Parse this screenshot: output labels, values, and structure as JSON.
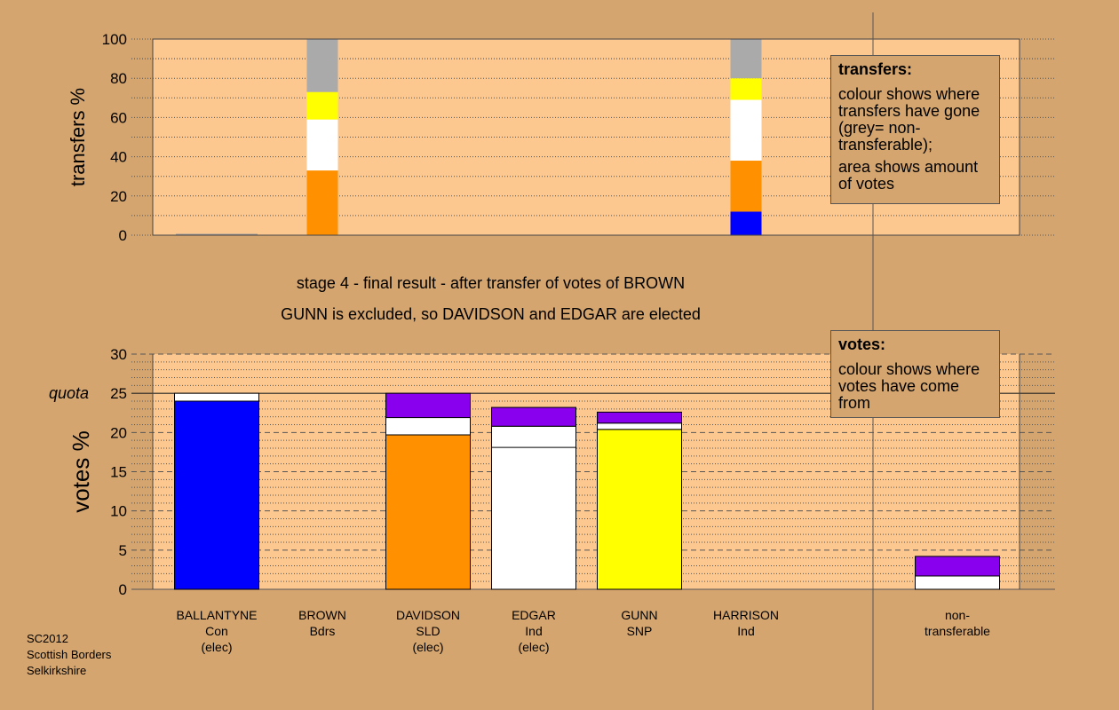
{
  "colors": {
    "background": "#d4a56f",
    "plot_bg": "#fdc890",
    "Con": "#0000ff",
    "SLD": "#ff9000",
    "Ind": "#ffffff",
    "SNP": "#ffff00",
    "Bdrs": "#8800ee",
    "non_transferable": "#aaaaaa"
  },
  "stage_title": "stage 4 - final result - after transfer of votes of BROWN",
  "stage_subtitle": "GUNN is excluded, so DAVIDSON and EDGAR are elected",
  "transfers_legend": {
    "heading": "transfers:",
    "text1": "colour shows where transfers have gone (grey= non-transferable);",
    "text2": "area shows amount of votes"
  },
  "votes_legend": {
    "heading": "votes:",
    "text1": "colour shows where votes have come from"
  },
  "footer": {
    "line1": "SC2012",
    "line2": "Scottish Borders",
    "line3": "Selkirkshire"
  },
  "candidates": [
    {
      "name": "BALLANTYNE",
      "party": "Con",
      "status": "(elec)"
    },
    {
      "name": "BROWN",
      "party": "Bdrs",
      "status": ""
    },
    {
      "name": "DAVIDSON",
      "party": "SLD",
      "status": "(elec)"
    },
    {
      "name": "EDGAR",
      "party": "Ind",
      "status": "(elec)"
    },
    {
      "name": "GUNN",
      "party": "SNP",
      "status": ""
    },
    {
      "name": "HARRISON",
      "party": "Ind",
      "status": ""
    }
  ],
  "nontransferable_label": {
    "line1": "non-",
    "line2": "transferable"
  },
  "chart_data": [
    {
      "type": "bar",
      "stacked": true,
      "ylabel": "transfers %",
      "ylim": [
        0,
        100
      ],
      "yticks": [
        0,
        20,
        40,
        60,
        80,
        100
      ],
      "grid": "dotted",
      "columns": [
        {
          "position": "BALLANTYNE",
          "segments": []
        },
        {
          "position": "BROWN",
          "segments": [
            {
              "color": "SLD",
              "from": 0,
              "to": 33
            },
            {
              "color": "Ind",
              "from": 33,
              "to": 59
            },
            {
              "color": "SNP",
              "from": 59,
              "to": 73
            },
            {
              "color": "non_transferable",
              "from": 73,
              "to": 100
            }
          ]
        },
        {
          "position": "DAVIDSON",
          "segments": []
        },
        {
          "position": "EDGAR",
          "segments": []
        },
        {
          "position": "GUNN",
          "segments": []
        },
        {
          "position": "HARRISON",
          "segments": []
        },
        {
          "position": "GUNN",
          "offset": "right",
          "segments": []
        },
        {
          "position": "between HARRISON and non-transferable",
          "segments": [
            {
              "color": "Con",
              "from": 0,
              "to": 12
            },
            {
              "color": "SLD",
              "from": 12,
              "to": 38
            },
            {
              "color": "Ind",
              "from": 38,
              "to": 69
            },
            {
              "color": "SNP",
              "from": 69,
              "to": 80
            },
            {
              "color": "non_transferable",
              "from": 80,
              "to": 100
            }
          ]
        }
      ]
    },
    {
      "type": "bar",
      "stacked": true,
      "ylabel": "votes %",
      "ylim": [
        0,
        30
      ],
      "yticks": [
        0,
        5,
        10,
        15,
        20,
        25,
        30
      ],
      "quota": 25,
      "quota_label": "quota",
      "grid": "dotted",
      "categories": [
        "BALLANTYNE",
        "BROWN",
        "DAVIDSON",
        "EDGAR",
        "GUNN",
        "HARRISON",
        "non-transferable"
      ],
      "series": [
        {
          "color": "Con",
          "values": [
            24.0,
            0,
            0,
            0,
            0,
            0,
            0
          ]
        },
        {
          "color": "SLD",
          "values": [
            0,
            0,
            19.7,
            0,
            0,
            0,
            0
          ]
        },
        {
          "color": "SNP",
          "values": [
            0,
            0,
            0,
            0,
            20.4,
            0,
            0
          ]
        },
        {
          "color": "Ind",
          "values": [
            1.0,
            0,
            2.2,
            20.8,
            0.8,
            0,
            1.7
          ]
        },
        {
          "color": "Bdrs",
          "values": [
            0,
            0,
            3.1,
            2.4,
            1.4,
            0,
            2.5
          ]
        }
      ],
      "ind_split": {
        "EDGAR": [
          18.1,
          2.7
        ]
      }
    }
  ]
}
